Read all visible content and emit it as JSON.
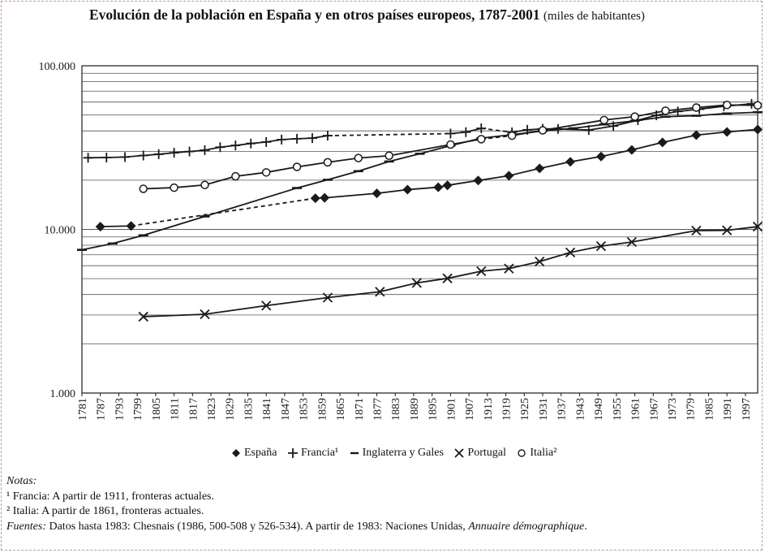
{
  "title": {
    "main": "Evolución de la población en España y en otros países europeos, 1787-2001",
    "unit": "(miles de habitantes)"
  },
  "chart_data": {
    "type": "line",
    "scale": "log",
    "title": "Evolución de la población en España y en otros países europeos, 1787-2001",
    "ylabel": "miles de habitantes",
    "ylim": [
      1000,
      100000
    ],
    "xlim": [
      1781,
      2001
    ],
    "y_ticks": [
      {
        "value": 1000,
        "label": "1.000"
      },
      {
        "value": 10000,
        "label": "10.000"
      },
      {
        "value": 100000,
        "label": "100.000"
      }
    ],
    "x_ticks": [
      1781,
      1787,
      1793,
      1799,
      1805,
      1811,
      1817,
      1823,
      1829,
      1835,
      1841,
      1847,
      1853,
      1859,
      1865,
      1871,
      1877,
      1883,
      1889,
      1895,
      1901,
      1907,
      1913,
      1919,
      1925,
      1931,
      1937,
      1943,
      1949,
      1955,
      1961,
      1967,
      1973,
      1979,
      1985,
      1991,
      1997
    ],
    "series": [
      {
        "name": "España",
        "marker": "diamond",
        "x": [
          1787,
          1797,
          1857,
          1860,
          1877,
          1887,
          1897,
          1900,
          1910,
          1920,
          1930,
          1940,
          1950,
          1960,
          1970,
          1981,
          1991,
          2001
        ],
        "y": [
          10400,
          10500,
          15500,
          15600,
          16600,
          17500,
          18100,
          18600,
          19900,
          21300,
          23600,
          25900,
          27900,
          30600,
          34000,
          37700,
          39400,
          40800
        ],
        "dashed_segments": [
          [
            1797,
            1857
          ]
        ]
      },
      {
        "name": "Francia¹",
        "marker": "plus",
        "x": [
          1783,
          1789,
          1795,
          1801,
          1806,
          1811,
          1816,
          1821,
          1826,
          1831,
          1836,
          1841,
          1846,
          1851,
          1856,
          1861,
          1901,
          1906,
          1911,
          1921,
          1926,
          1931,
          1936,
          1946,
          1954,
          1962,
          1968,
          1975,
          1982,
          1990,
          1999
        ],
        "y": [
          27400,
          27500,
          27700,
          28300,
          28800,
          29400,
          29900,
          30500,
          31800,
          32600,
          33500,
          34200,
          35400,
          35800,
          36100,
          37400,
          38500,
          39300,
          41500,
          39200,
          40600,
          41200,
          41100,
          40500,
          42800,
          46500,
          49800,
          52600,
          54300,
          56600,
          58500
        ],
        "dashed_segments": [
          [
            1861,
            1901
          ],
          [
            1911,
            1921
          ]
        ]
      },
      {
        "name": "Inglaterra y Gales",
        "marker": "dash",
        "x": [
          1781,
          1791,
          1801,
          1821,
          1851,
          1861,
          1871,
          1881,
          1891,
          1901,
          1911,
          1921,
          1931,
          1941,
          1951,
          1961,
          1971,
          1981,
          1991,
          2001
        ],
        "y": [
          7500,
          8200,
          9200,
          12000,
          17900,
          20100,
          22700,
          26000,
          29000,
          32500,
          36100,
          37900,
          40000,
          41500,
          43800,
          46100,
          48800,
          49500,
          51100,
          52000
        ]
      },
      {
        "name": "Portugal",
        "marker": "x",
        "x": [
          1801,
          1821,
          1841,
          1861,
          1878,
          1890,
          1900,
          1911,
          1920,
          1930,
          1940,
          1950,
          1960,
          1981,
          1991,
          2001
        ],
        "y": [
          2930,
          3030,
          3420,
          3830,
          4160,
          4710,
          5020,
          5550,
          5760,
          6360,
          7230,
          7900,
          8380,
          9830,
          9870,
          10400
        ]
      },
      {
        "name": "Italia²",
        "marker": "circle",
        "x": [
          1801,
          1811,
          1821,
          1831,
          1841,
          1851,
          1861,
          1871,
          1881,
          1901,
          1911,
          1921,
          1931,
          1951,
          1961,
          1971,
          1981,
          1991,
          2001
        ],
        "y": [
          17700,
          18000,
          18700,
          21100,
          22300,
          24100,
          25700,
          27300,
          28200,
          33000,
          35600,
          37400,
          40300,
          46600,
          48900,
          53100,
          55500,
          57600,
          57300
        ],
        "dashed_segments": [
          [
            1911,
            1921
          ]
        ]
      }
    ],
    "legend": [
      "España",
      "Francia¹",
      "Inglaterra y Gales",
      "Portugal",
      "Italia²"
    ],
    "legend_position": "bottom"
  },
  "notes": {
    "header": "Notas:",
    "note1_mark": "¹",
    "note1_text": " Francia: A partir de 1911, fronteras actuales.",
    "note2_mark": "²",
    "note2_text": " Italia: A partir de 1861, fronteras actuales.",
    "sources_label": "Fuentes:",
    "sources_text": " Datos hasta 1983: Chesnais (1986, 500-508 y 526-534). A partir de  1983: Naciones Unidas, ",
    "sources_italic": "Annuaire démographique",
    "sources_end": "."
  },
  "colors": {
    "line": "#1a1a1a",
    "grid": "#555555",
    "frame": "#d98fb0"
  }
}
